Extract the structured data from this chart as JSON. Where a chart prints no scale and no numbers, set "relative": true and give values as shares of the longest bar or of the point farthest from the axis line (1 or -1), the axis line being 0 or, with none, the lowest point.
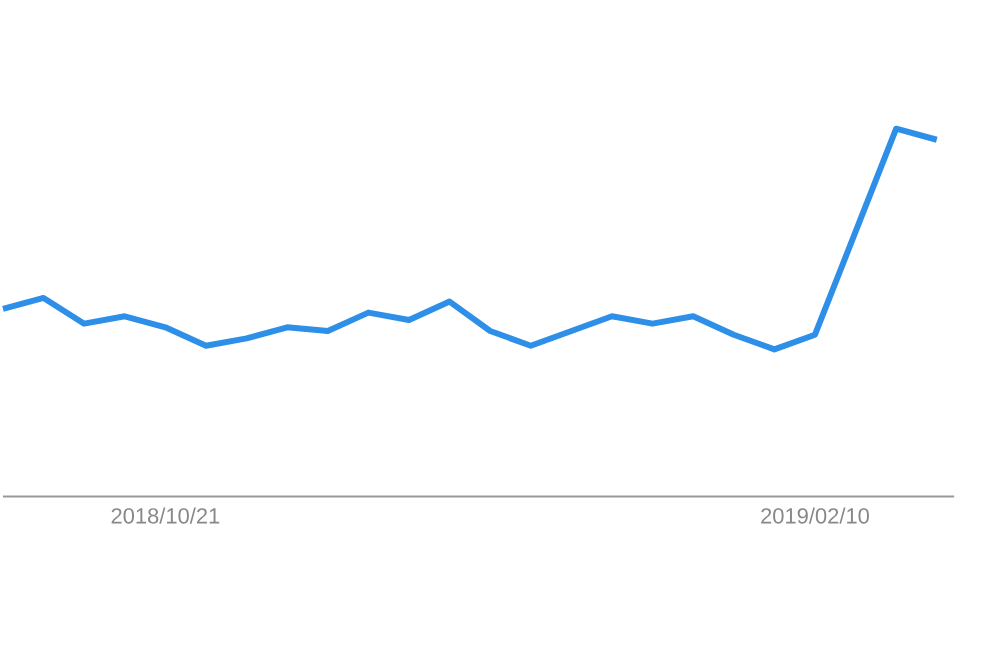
{
  "chart_data": {
    "type": "line",
    "relative": true,
    "x": [
      "2018-09-23",
      "2018-09-30",
      "2018-10-07",
      "2018-10-14",
      "2018-10-21",
      "2018-10-28",
      "2018-11-04",
      "2018-11-11",
      "2018-11-18",
      "2018-11-25",
      "2018-12-02",
      "2018-12-09",
      "2018-12-16",
      "2018-12-23",
      "2018-12-30",
      "2019-01-06",
      "2019-01-13",
      "2019-01-20",
      "2019-01-27",
      "2019-02-03",
      "2019-02-10",
      "2019-02-17",
      "2019-02-24",
      "2019-03-03"
    ],
    "series": [
      {
        "color": "#2d8fe8",
        "values": [
          0.51,
          0.54,
          0.47,
          0.49,
          0.46,
          0.41,
          0.43,
          0.46,
          0.45,
          0.5,
          0.48,
          0.53,
          0.45,
          0.41,
          0.45,
          0.49,
          0.47,
          0.49,
          0.44,
          0.4,
          0.44,
          0.72,
          1.0,
          0.97
        ]
      }
    ],
    "xlim": [
      "2018-09-23",
      "2019-03-06"
    ],
    "xticks": [
      {
        "value": "2018-10-21",
        "label": "2018/10/21"
      },
      {
        "value": "2019-02-10",
        "label": "2019/02/10"
      }
    ],
    "marker": "none",
    "line_style": "solid"
  }
}
